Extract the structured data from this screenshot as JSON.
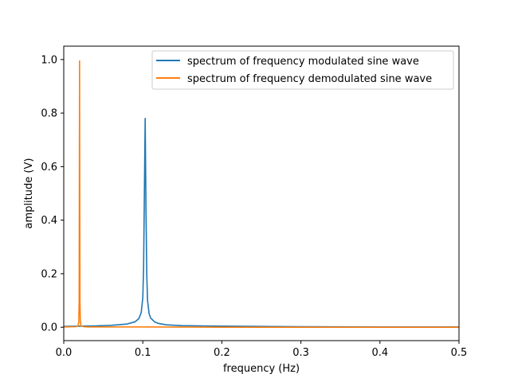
{
  "chart_data": {
    "type": "line",
    "title": "",
    "xlabel": "frequency (Hz)",
    "ylabel": "amplitude (V)",
    "xlim": [
      0.0,
      0.5
    ],
    "ylim": [
      -0.05,
      1.05
    ],
    "xticks": [
      0.0,
      0.1,
      0.2,
      0.3,
      0.4,
      0.5
    ],
    "xtick_labels": [
      "0.0",
      "0.1",
      "0.2",
      "0.3",
      "0.4",
      "0.5"
    ],
    "yticks": [
      0.0,
      0.2,
      0.4,
      0.6,
      0.8,
      1.0
    ],
    "ytick_labels": [
      "0.0",
      "0.2",
      "0.4",
      "0.6",
      "0.8",
      "1.0"
    ],
    "grid": false,
    "legend_position": "top-right",
    "series": [
      {
        "name": "spectrum of frequency modulated sine wave",
        "color": "#1f77b4",
        "x": [
          0.0,
          0.02,
          0.04,
          0.06,
          0.08,
          0.09,
          0.095,
          0.098,
          0.1,
          0.101,
          0.102,
          0.103,
          0.104,
          0.105,
          0.106,
          0.108,
          0.11,
          0.115,
          0.12,
          0.13,
          0.15,
          0.2,
          0.3,
          0.4,
          0.5
        ],
        "y": [
          0.003,
          0.004,
          0.005,
          0.007,
          0.012,
          0.02,
          0.032,
          0.055,
          0.11,
          0.22,
          0.5,
          0.78,
          0.45,
          0.2,
          0.1,
          0.05,
          0.034,
          0.02,
          0.014,
          0.009,
          0.006,
          0.004,
          0.002,
          0.001,
          0.001
        ]
      },
      {
        "name": "spectrum of frequency demodulated sine wave",
        "color": "#ff7f0e",
        "x": [
          0.0,
          0.015,
          0.018,
          0.019,
          0.0195,
          0.02,
          0.0205,
          0.021,
          0.022,
          0.025,
          0.03,
          0.1,
          0.2,
          0.3,
          0.4,
          0.5
        ],
        "y": [
          0.001,
          0.002,
          0.005,
          0.02,
          0.1,
          0.995,
          0.1,
          0.02,
          0.005,
          0.002,
          0.001,
          0.001,
          0.0,
          0.0,
          0.0,
          0.0
        ]
      }
    ]
  }
}
